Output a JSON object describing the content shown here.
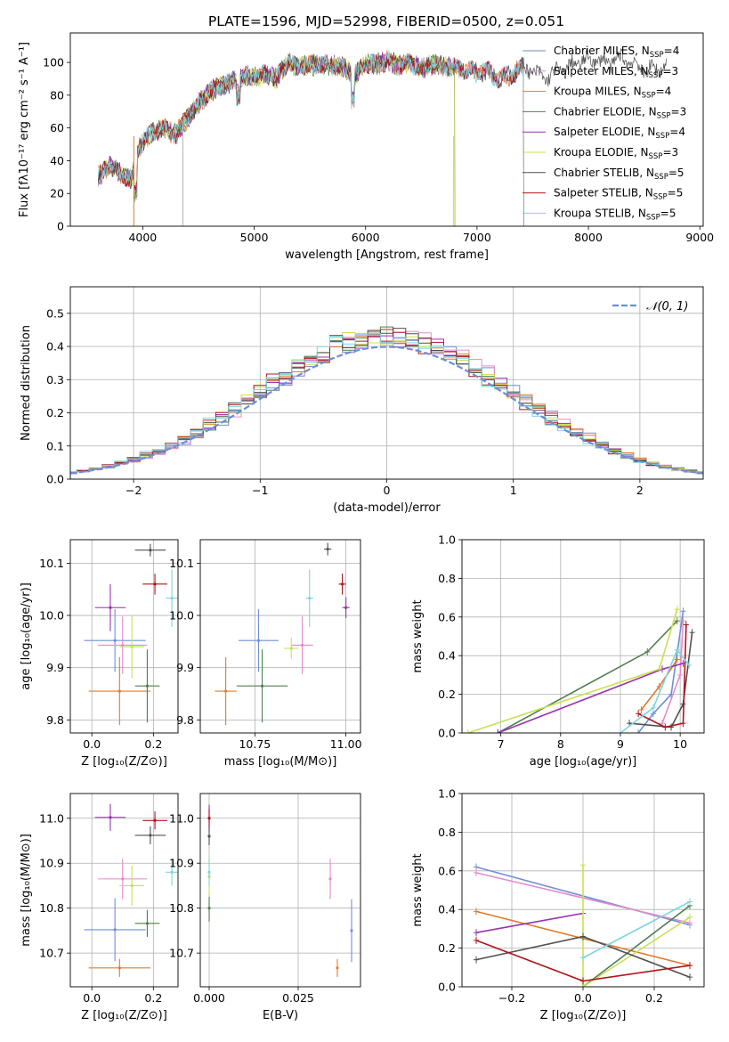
{
  "figure_title": "PLATE=1596, MJD=52998, FIBERID=0500, z=0.051",
  "chart_data": [
    {
      "id": "spectrum",
      "type": "line",
      "title": "PLATE=1596, MJD=52998, FIBERID=0500, z=0.051",
      "xlabel": "wavelength [Angstrom, rest frame]",
      "ylabel": "Flux [fλ10⁻¹⁷ erg cm⁻² s⁻¹ A⁻¹]",
      "xlim": [
        3350,
        9030
      ],
      "ylim": [
        0,
        118
      ],
      "xticks": [
        4000,
        5000,
        6000,
        7000,
        8000,
        9000
      ],
      "yticks": [
        0,
        20,
        40,
        60,
        80,
        100
      ],
      "grid": false,
      "legend_position": "top-right",
      "data_key": [
        [
          3600,
          30
        ],
        [
          3700,
          38
        ],
        [
          3800,
          32
        ],
        [
          3900,
          28
        ],
        [
          3950,
          45
        ],
        [
          4000,
          52
        ],
        [
          4100,
          58
        ],
        [
          4200,
          60
        ],
        [
          4300,
          56
        ],
        [
          4400,
          66
        ],
        [
          4500,
          75
        ],
        [
          4600,
          82
        ],
        [
          4700,
          86
        ],
        [
          4800,
          88
        ],
        [
          4900,
          92
        ],
        [
          5000,
          91
        ],
        [
          5100,
          93
        ],
        [
          5200,
          90
        ],
        [
          5300,
          100
        ],
        [
          5400,
          97
        ],
        [
          5500,
          98
        ],
        [
          5600,
          99
        ],
        [
          5700,
          98
        ],
        [
          5800,
          97
        ],
        [
          5900,
          92
        ],
        [
          6000,
          99
        ],
        [
          6100,
          99
        ],
        [
          6200,
          101
        ],
        [
          6300,
          98
        ],
        [
          6400,
          100
        ],
        [
          6500,
          96
        ],
        [
          6600,
          99
        ],
        [
          6700,
          98
        ],
        [
          6800,
          97
        ],
        [
          6900,
          95
        ],
        [
          7000,
          94
        ],
        [
          7100,
          95
        ],
        [
          7200,
          90
        ],
        [
          7300,
          92
        ],
        [
          7400,
          97
        ],
        [
          7500,
          95
        ],
        [
          7600,
          90
        ],
        [
          7700,
          94
        ],
        [
          7800,
          96
        ],
        [
          7900,
          100
        ],
        [
          8000,
          102
        ],
        [
          8100,
          101
        ],
        [
          8200,
          100
        ],
        [
          8300,
          103
        ],
        [
          8400,
          100
        ],
        [
          8500,
          95
        ],
        [
          8600,
          96
        ],
        [
          8700,
          98
        ]
      ],
      "series": [
        {
          "name": "Chabrier MILES, N",
          "nssp": "=4",
          "color": "#6f8fb4",
          "range": [
            3600,
            7420
          ]
        },
        {
          "name": "Salpeter MILES, N",
          "nssp": "=3",
          "color": "#e58ac9",
          "range": [
            3600,
            7420
          ]
        },
        {
          "name": "Kroupa MILES, N",
          "nssp": "=4",
          "color": "#e07b2a",
          "range": [
            3600,
            7420
          ]
        },
        {
          "name": "Chabrier ELODIE, N",
          "nssp": "=3",
          "color": "#4f7f4f",
          "range": [
            3600,
            6800
          ]
        },
        {
          "name": "Salpeter ELODIE, N",
          "nssp": "=4",
          "color": "#9b30b0",
          "range": [
            3600,
            6800
          ]
        },
        {
          "name": "Kroupa ELODIE, N",
          "nssp": "=3",
          "color": "#c9e052",
          "range": [
            3600,
            6800
          ]
        },
        {
          "name": "Chabrier STELIB, N",
          "nssp": "=5",
          "color": "#505050",
          "range": [
            3600,
            8700
          ]
        },
        {
          "name": "Salpeter STELIB, N",
          "nssp": "=5",
          "color": "#b0141c",
          "range": [
            3600,
            7420
          ]
        },
        {
          "name": "Kroupa STELIB, N",
          "nssp": "=5",
          "color": "#7fd3df",
          "range": [
            3600,
            7420
          ]
        }
      ]
    },
    {
      "id": "residuals",
      "type": "line",
      "xlabel": "(data-model)/error",
      "ylabel": "Normed distribution",
      "xlim": [
        -2.5,
        2.5
      ],
      "ylim": [
        0,
        0.58
      ],
      "xticks": [
        -2,
        -1,
        0,
        1,
        2
      ],
      "yticks": [
        0.0,
        0.1,
        0.2,
        0.3,
        0.4,
        0.5
      ],
      "grid": true,
      "legend_position": "top-right",
      "reference_curve": {
        "name": "𝒩(0, 1)",
        "color": "#6a8ed8"
      },
      "bin_width": 0.1,
      "series_colors": [
        "#6f8fd8",
        "#e58ac9",
        "#e07b2a",
        "#4f7f4f",
        "#9b30b0",
        "#c9e052",
        "#505050",
        "#b0141c",
        "#7fd3df"
      ]
    },
    {
      "id": "age-vs-z",
      "type": "scatter",
      "xlabel": "Z [log₁₀(Z/Z⊙)]",
      "ylabel": "age  [log₁₀(age/yr)]",
      "xlim": [
        -0.07,
        0.28
      ],
      "ylim": [
        9.775,
        10.145
      ],
      "xticks": [
        0.0,
        0.2
      ],
      "yticks": [
        9.8,
        9.9,
        10.0,
        10.1
      ],
      "grid": true,
      "points": [
        {
          "color": "#6f8fd8",
          "x": 0.075,
          "y": 9.952,
          "xerr": 0.1,
          "yerr": 0.06
        },
        {
          "color": "#e58ac9",
          "x": 0.1,
          "y": 9.943,
          "xerr": 0.08,
          "yerr": 0.055
        },
        {
          "color": "#e07b2a",
          "x": 0.09,
          "y": 9.855,
          "xerr": 0.1,
          "yerr": 0.065
        },
        {
          "color": "#4f7f4f",
          "x": 0.18,
          "y": 9.865,
          "xerr": 0.04,
          "yerr": 0.07
        },
        {
          "color": "#9b30b0",
          "x": 0.06,
          "y": 10.015,
          "xerr": 0.05,
          "yerr": 0.045
        },
        {
          "color": "#c9e052",
          "x": 0.13,
          "y": 9.94,
          "xerr": 0.04,
          "yerr": 0.06
        },
        {
          "color": "#505050",
          "x": 0.19,
          "y": 10.125,
          "xerr": 0.05,
          "yerr": 0.012
        },
        {
          "color": "#b0141c",
          "x": 0.205,
          "y": 10.06,
          "xerr": 0.04,
          "yerr": 0.02
        },
        {
          "color": "#7fd3df",
          "x": 0.26,
          "y": 10.033,
          "xerr": 0.02,
          "yerr": 0.055
        }
      ]
    },
    {
      "id": "age-vs-mass",
      "type": "scatter",
      "xlabel": "mass [log₁₀(M/M⊙)]",
      "ylabel": "",
      "xlim": [
        10.6,
        11.04
      ],
      "ylim": [
        9.775,
        10.145
      ],
      "xticks": [
        10.75,
        11.0
      ],
      "xtick_labels": [
        "10.75",
        "11.00"
      ],
      "yticks": [
        9.8,
        9.9,
        10.0,
        10.1
      ],
      "grid": true,
      "points": [
        {
          "color": "#6f8fd8",
          "x": 10.76,
          "y": 9.952,
          "xerr": 0.055,
          "yerr": 0.06
        },
        {
          "color": "#e58ac9",
          "x": 10.88,
          "y": 9.943,
          "xerr": 0.03,
          "yerr": 0.055
        },
        {
          "color": "#e07b2a",
          "x": 10.67,
          "y": 9.855,
          "xerr": 0.03,
          "yerr": 0.065
        },
        {
          "color": "#4f7f4f",
          "x": 10.77,
          "y": 9.865,
          "xerr": 0.07,
          "yerr": 0.07
        },
        {
          "color": "#9b30b0",
          "x": 11.0,
          "y": 10.015,
          "xerr": 0.01,
          "yerr": 0.02
        },
        {
          "color": "#c9e052",
          "x": 10.85,
          "y": 9.937,
          "xerr": 0.02,
          "yerr": 0.02
        },
        {
          "color": "#505050",
          "x": 10.95,
          "y": 10.127,
          "xerr": 0.01,
          "yerr": 0.012
        },
        {
          "color": "#b0141c",
          "x": 10.99,
          "y": 10.06,
          "xerr": 0.01,
          "yerr": 0.02
        },
        {
          "color": "#7fd3df",
          "x": 10.9,
          "y": 10.033,
          "xerr": 0.01,
          "yerr": 0.055
        }
      ]
    },
    {
      "id": "weight-vs-age",
      "type": "line",
      "xlabel": "age  [log₁₀(age/yr)]",
      "ylabel": "mass weight",
      "xlim": [
        6.35,
        10.4
      ],
      "ylim": [
        0,
        1
      ],
      "xticks": [
        7,
        8,
        9,
        10
      ],
      "yticks": [
        0.0,
        0.2,
        0.4,
        0.6,
        0.8,
        1.0
      ],
      "grid": true,
      "series": [
        {
          "color": "#6f8fd8",
          "points": [
            [
              9.3,
              0.0
            ],
            [
              9.55,
              0.1
            ],
            [
              9.85,
              0.2
            ],
            [
              10.05,
              0.63
            ]
          ]
        },
        {
          "color": "#e58ac9",
          "points": [
            [
              9.7,
              0.05
            ],
            [
              10.0,
              0.3
            ],
            [
              10.05,
              0.58
            ]
          ]
        },
        {
          "color": "#e07b2a",
          "points": [
            [
              9.35,
              0.12
            ],
            [
              9.65,
              0.24
            ],
            [
              9.95,
              0.38
            ]
          ]
        },
        {
          "color": "#4f7f4f",
          "points": [
            [
              6.95,
              0.0
            ],
            [
              9.45,
              0.42
            ],
            [
              9.95,
              0.58
            ]
          ]
        },
        {
          "color": "#9b30b0",
          "points": [
            [
              6.95,
              0.0
            ],
            [
              9.7,
              0.33
            ],
            [
              10.05,
              0.36
            ]
          ]
        },
        {
          "color": "#c9e052",
          "points": [
            [
              6.45,
              0.0
            ],
            [
              9.65,
              0.33
            ],
            [
              9.95,
              0.64
            ]
          ]
        },
        {
          "color": "#505050",
          "points": [
            [
              9.15,
              0.05
            ],
            [
              9.85,
              0.03
            ],
            [
              10.05,
              0.15
            ],
            [
              10.2,
              0.52
            ]
          ]
        },
        {
          "color": "#b0141c",
          "points": [
            [
              9.3,
              0.1
            ],
            [
              9.75,
              0.03
            ],
            [
              10.05,
              0.05
            ],
            [
              10.1,
              0.56
            ]
          ]
        },
        {
          "color": "#7fd3df",
          "points": [
            [
              9.0,
              0.0
            ],
            [
              9.55,
              0.13
            ],
            [
              9.95,
              0.43
            ],
            [
              10.15,
              0.35
            ]
          ]
        }
      ]
    },
    {
      "id": "mass-vs-z",
      "type": "scatter",
      "xlabel": "Z [log₁₀(Z/Z⊙)]",
      "ylabel": "mass [log₁₀(M/M⊙)]",
      "xlim": [
        -0.07,
        0.28
      ],
      "ylim": [
        10.625,
        11.055
      ],
      "xticks": [
        0.0,
        0.2
      ],
      "yticks": [
        10.7,
        10.8,
        10.9,
        11.0
      ],
      "grid": true,
      "points": [
        {
          "color": "#6f8fd8",
          "x": 0.075,
          "y": 10.752,
          "xerr": 0.1,
          "yerr": 0.07
        },
        {
          "color": "#e58ac9",
          "x": 0.1,
          "y": 10.865,
          "xerr": 0.08,
          "yerr": 0.045
        },
        {
          "color": "#e07b2a",
          "x": 0.09,
          "y": 10.667,
          "xerr": 0.1,
          "yerr": 0.02
        },
        {
          "color": "#4f7f4f",
          "x": 0.18,
          "y": 10.766,
          "xerr": 0.04,
          "yerr": 0.03
        },
        {
          "color": "#9b30b0",
          "x": 0.06,
          "y": 11.002,
          "xerr": 0.05,
          "yerr": 0.03
        },
        {
          "color": "#c9e052",
          "x": 0.13,
          "y": 10.85,
          "xerr": 0.04,
          "yerr": 0.045
        },
        {
          "color": "#505050",
          "x": 0.19,
          "y": 10.962,
          "xerr": 0.05,
          "yerr": 0.02
        },
        {
          "color": "#b0141c",
          "x": 0.205,
          "y": 10.995,
          "xerr": 0.04,
          "yerr": 0.02
        },
        {
          "color": "#7fd3df",
          "x": 0.26,
          "y": 10.88,
          "xerr": 0.02,
          "yerr": 0.03
        }
      ]
    },
    {
      "id": "mass-vs-ebv",
      "type": "scatter",
      "xlabel": "E(B-V)",
      "ylabel": "",
      "xlim": [
        -0.0025,
        0.0425
      ],
      "ylim": [
        10.625,
        11.055
      ],
      "xticks": [
        0.0,
        0.025
      ],
      "xtick_labels": [
        "0.000",
        "0.025"
      ],
      "yticks": [
        10.7,
        10.8,
        10.9,
        11.0
      ],
      "grid": true,
      "points": [
        {
          "color": "#6f8fd8",
          "x": 0.04,
          "y": 10.75,
          "yerr": 0.07
        },
        {
          "color": "#e58ac9",
          "x": 0.034,
          "y": 10.865,
          "yerr": 0.045
        },
        {
          "color": "#e07b2a",
          "x": 0.036,
          "y": 10.667,
          "yerr": 0.02
        },
        {
          "color": "#4f7f4f",
          "x": 0.0,
          "y": 10.8,
          "yerr": 0.03
        },
        {
          "color": "#9b30b0",
          "x": 0.0,
          "y": 11.0,
          "yerr": 0.03
        },
        {
          "color": "#c9e052",
          "x": 0.0,
          "y": 10.87,
          "yerr": 0.045
        },
        {
          "color": "#505050",
          "x": 0.0,
          "y": 10.96,
          "yerr": 0.02
        },
        {
          "color": "#b0141c",
          "x": 0.0,
          "y": 11.0,
          "yerr": 0.02
        },
        {
          "color": "#7fd3df",
          "x": 0.0,
          "y": 10.88,
          "yerr": 0.03
        }
      ]
    },
    {
      "id": "weight-vs-z",
      "type": "line",
      "xlabel": "Z [log₁₀(Z/Z⊙)]",
      "ylabel": "mass weight",
      "xlim": [
        -0.34,
        0.34
      ],
      "ylim": [
        0,
        1
      ],
      "xticks": [
        -0.2,
        0.0,
        0.2
      ],
      "yticks": [
        0.0,
        0.2,
        0.4,
        0.6,
        0.8,
        1.0
      ],
      "grid": true,
      "series": [
        {
          "color": "#6f8fd8",
          "points": [
            [
              -0.3,
              0.62
            ],
            [
              0.3,
              0.32
            ]
          ]
        },
        {
          "color": "#e58ac9",
          "points": [
            [
              -0.3,
              0.59
            ],
            [
              0.3,
              0.33
            ]
          ]
        },
        {
          "color": "#e07b2a",
          "points": [
            [
              -0.3,
              0.39
            ],
            [
              0.3,
              0.11
            ]
          ]
        },
        {
          "color": "#4f7f4f",
          "points": [
            [
              0.0,
              0.0
            ],
            [
              0.3,
              0.42
            ]
          ]
        },
        {
          "color": "#9b30b0",
          "points": [
            [
              -0.3,
              0.28
            ],
            [
              0.0,
              0.38
            ]
          ]
        },
        {
          "color": "#c9e052",
          "points": [
            [
              0.0,
              0.63
            ],
            [
              0.0,
              0.0
            ],
            [
              0.3,
              0.36
            ]
          ]
        },
        {
          "color": "#505050",
          "points": [
            [
              -0.3,
              0.14
            ],
            [
              0.0,
              0.26
            ],
            [
              0.3,
              0.05
            ]
          ]
        },
        {
          "color": "#b0141c",
          "points": [
            [
              -0.3,
              0.24
            ],
            [
              0.0,
              0.03
            ],
            [
              0.3,
              0.11
            ]
          ]
        },
        {
          "color": "#7fd3df",
          "points": [
            [
              0.0,
              0.15
            ],
            [
              0.3,
              0.44
            ]
          ]
        }
      ]
    }
  ]
}
